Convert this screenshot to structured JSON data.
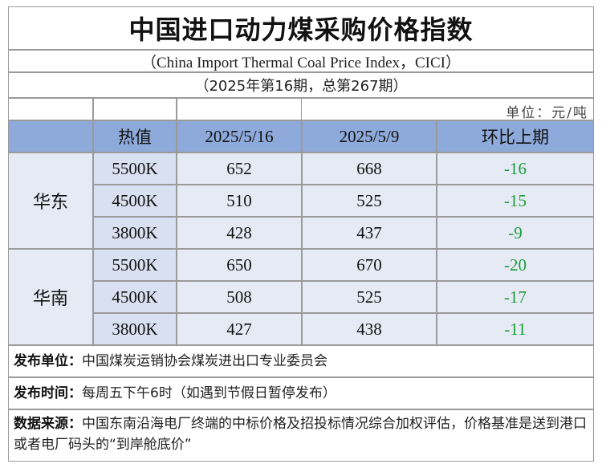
{
  "title": "中国进口动力煤采购价格指数",
  "subtitle_en": "（China Import Thermal Coal Price Index，CICI）",
  "issue": "（2025年第16期，总第267期）",
  "unit": "单位：元/吨",
  "headers": {
    "grade": "热值",
    "date1": "2025/5/16",
    "date2": "2025/5/9",
    "change": "环比上期"
  },
  "regions": [
    {
      "name": "华东",
      "rows": [
        {
          "grade": "5500K",
          "current": "652",
          "previous": "668",
          "change": "-16"
        },
        {
          "grade": "4500K",
          "current": "510",
          "previous": "525",
          "change": "-15"
        },
        {
          "grade": "3800K",
          "current": "428",
          "previous": "437",
          "change": "-9"
        }
      ]
    },
    {
      "name": "华南",
      "rows": [
        {
          "grade": "5500K",
          "current": "650",
          "previous": "670",
          "change": "-20"
        },
        {
          "grade": "4500K",
          "current": "508",
          "previous": "525",
          "change": "-17"
        },
        {
          "grade": "3800K",
          "current": "427",
          "previous": "438",
          "change": "-11"
        }
      ]
    }
  ],
  "publisher": {
    "label": "发布单位：",
    "text": "中国煤炭运销协会煤炭进出口专业委员会"
  },
  "release_time": {
    "label": "发布时间：",
    "text": "每周五下午6时（如遇到节假日暂停发布）"
  },
  "data_source": {
    "label": "数据来源：",
    "text": "中国东南沿海电厂终端的中标价格及招投标情况综合加权评估，价格基准是送到港口或者电厂码头的“到岸舱底价”"
  },
  "colors": {
    "header_bg": "#8eaadb",
    "cell_bg": "#e6eaf5",
    "change_text": "#1a9e3a"
  }
}
